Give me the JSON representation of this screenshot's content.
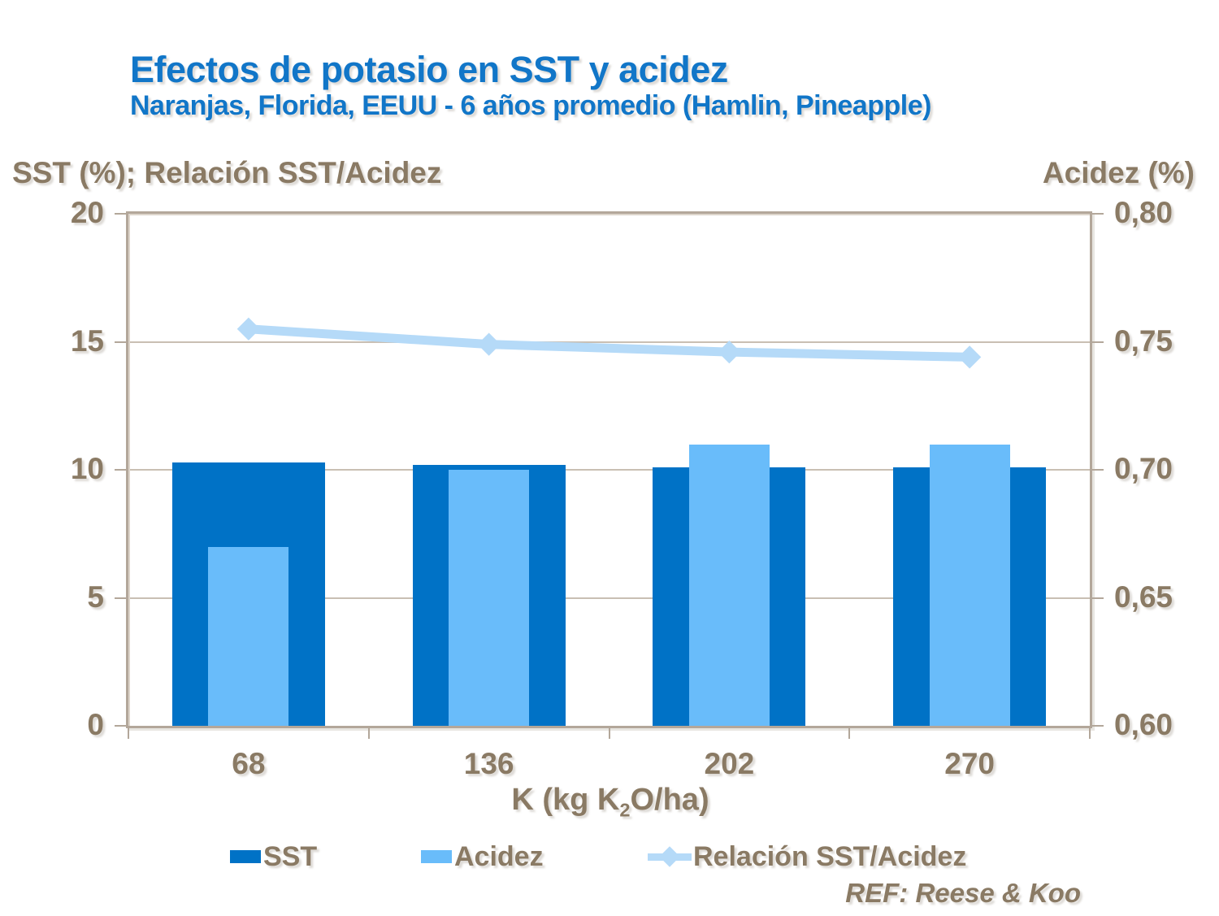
{
  "title": "Efectos de potasio en SST y acidez",
  "subtitle": "Naranjas, Florida, EEUU - 6 años promedio (Hamlin, Pineapple)",
  "reference": "REF: Reese & Koo",
  "axes": {
    "left_title": "SST (%); Relación SST/Acidez",
    "right_title": "Acidez (%)",
    "x_title": {
      "pre": "K (kg K",
      "sub": "2",
      "post": "O/ha)"
    }
  },
  "legend": {
    "items": [
      {
        "label": "SST",
        "marker": "bar",
        "color": "#0072C6"
      },
      {
        "label": "Acidez",
        "marker": "bar",
        "color": "#69BCFA"
      },
      {
        "label": "Relación SST/Acidez",
        "marker": "line-diamond",
        "color": "#B5DAF8"
      }
    ]
  },
  "colors": {
    "title_blue": "#1176C8",
    "text_brown": "#8A7A64",
    "sst_bar": "#0072C6",
    "acidez_bar": "#69BCFA",
    "ratio_line": "#B5DAF8",
    "gridline": "#C9BFB3",
    "plot_border": "#B3A79A"
  },
  "chart_data": {
    "type": "bar",
    "title": "Efectos de potasio en SST y acidez",
    "subtitle": "Naranjas, Florida, EEUU - 6 años promedio (Hamlin, Pineapple)",
    "categories": [
      "68",
      "136",
      "202",
      "270"
    ],
    "series": [
      {
        "name": "SST",
        "type": "bar",
        "axis": "left",
        "color": "#0072C6",
        "width_frac": 0.635,
        "values": [
          10.3,
          10.2,
          10.1,
          10.1
        ]
      },
      {
        "name": "Acidez",
        "type": "bar",
        "axis": "right",
        "color": "#69BCFA",
        "width_frac": 0.335,
        "values": [
          0.67,
          0.7,
          0.71,
          0.71
        ]
      },
      {
        "name": "Relación SST/Acidez",
        "type": "line",
        "axis": "left",
        "color": "#B5DAF8",
        "values": [
          15.5,
          14.9,
          14.6,
          14.4
        ]
      }
    ],
    "left_axis": {
      "title": "SST (%); Relación SST/Acidez",
      "min": 0,
      "max": 20,
      "tick_values": [
        0,
        5,
        10,
        15,
        20
      ],
      "tick_labels": [
        "0",
        "5",
        "10",
        "15",
        "20"
      ]
    },
    "right_axis": {
      "title": "Acidez (%)",
      "min": 0.6,
      "max": 0.8,
      "tick_values": [
        0.6,
        0.65,
        0.7,
        0.75,
        0.8
      ],
      "tick_labels": [
        "0,60",
        "0,65",
        "0,70",
        "0,75",
        "0,80"
      ]
    },
    "x_axis": {
      "title": "K (kg K2O/ha)"
    },
    "grid": true,
    "legend_position": "bottom",
    "annotations": [
      "REF: Reese & Koo"
    ]
  }
}
